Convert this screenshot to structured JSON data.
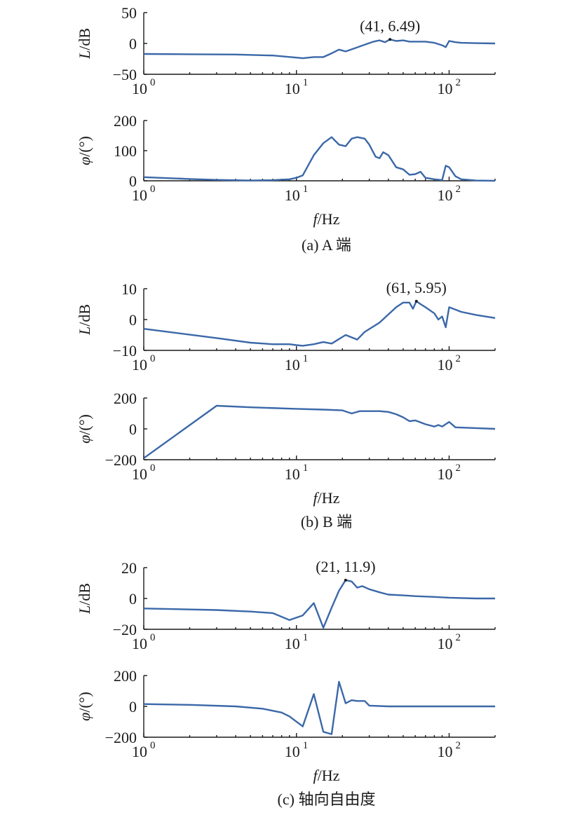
{
  "chart_data": [
    {
      "type": "line",
      "group": "a",
      "caption": "(a) A 端",
      "xlabel": "f/Hz",
      "ylabel": "L/dB",
      "xscale": "log",
      "xlim": [
        1,
        200
      ],
      "ylim": [
        -50,
        50
      ],
      "yticks": [
        -50,
        0,
        50
      ],
      "xticks": [
        1,
        10,
        100
      ],
      "annotation": {
        "x": 41,
        "y": 6.49,
        "text": "(41, 6.49)"
      },
      "series": [
        {
          "x": [
            1,
            2,
            4,
            7,
            10,
            11,
            13,
            15,
            17,
            19,
            21,
            24,
            28,
            32,
            35,
            38,
            41,
            45,
            50,
            55,
            60,
            70,
            80,
            90,
            95,
            100,
            110,
            120,
            150,
            200
          ],
          "y": [
            -17,
            -17.5,
            -18,
            -19.5,
            -23,
            -24,
            -22,
            -22,
            -16,
            -10,
            -13,
            -8,
            -2,
            3,
            5,
            2,
            6.49,
            4,
            5,
            3,
            3,
            3,
            1,
            -3,
            -6,
            4,
            2,
            1,
            0.5,
            0
          ]
        }
      ]
    },
    {
      "type": "line",
      "group": "a",
      "caption": "",
      "xlabel": "f/Hz",
      "ylabel": "φ/(°)",
      "xscale": "log",
      "xlim": [
        1,
        200
      ],
      "ylim": [
        0,
        200
      ],
      "yticks": [
        0,
        100,
        200
      ],
      "xticks": [
        1,
        10,
        100
      ],
      "series": [
        {
          "x": [
            1,
            2,
            3,
            5,
            7,
            9,
            10,
            11,
            13,
            15,
            17,
            19,
            21,
            23,
            25,
            28,
            30,
            33,
            35,
            37,
            40,
            45,
            50,
            55,
            60,
            65,
            70,
            80,
            90,
            95,
            100,
            110,
            120,
            150,
            200
          ],
          "y": [
            12,
            6,
            3,
            1,
            2,
            5,
            10,
            18,
            85,
            125,
            145,
            120,
            115,
            140,
            145,
            140,
            120,
            80,
            75,
            95,
            85,
            45,
            38,
            20,
            22,
            30,
            10,
            5,
            2,
            50,
            45,
            15,
            5,
            1,
            0
          ]
        }
      ]
    },
    {
      "type": "line",
      "group": "b",
      "caption": "(b) B 端",
      "xlabel": "f/Hz",
      "ylabel": "L/dB",
      "xscale": "log",
      "xlim": [
        1,
        200
      ],
      "ylim": [
        -10,
        10
      ],
      "yticks": [
        -10,
        0,
        10
      ],
      "xticks": [
        1,
        10,
        100
      ],
      "annotation": {
        "x": 61,
        "y": 5.95,
        "text": "(61, 5.95)"
      },
      "series": [
        {
          "x": [
            1,
            3,
            5,
            7,
            9,
            10,
            11,
            13,
            15,
            17,
            21,
            25,
            28,
            35,
            45,
            50,
            55,
            58,
            61,
            65,
            70,
            80,
            85,
            90,
            95,
            100,
            120,
            150,
            200
          ],
          "y": [
            -3,
            -6,
            -7.5,
            -8,
            -8,
            -8.3,
            -8.5,
            -8,
            -7.3,
            -7.8,
            -5,
            -6.5,
            -4,
            -1,
            4,
            5.5,
            5.5,
            3.5,
            5.95,
            5,
            4,
            2,
            0,
            1,
            -2.5,
            4,
            2.5,
            1.5,
            0.5
          ]
        }
      ]
    },
    {
      "type": "line",
      "group": "b",
      "caption": "",
      "xlabel": "f/Hz",
      "ylabel": "φ/(°)",
      "xscale": "log",
      "xlim": [
        1,
        200
      ],
      "ylim": [
        -200,
        200
      ],
      "yticks": [
        -200,
        0,
        200
      ],
      "xticks": [
        1,
        10,
        100
      ],
      "series": [
        {
          "x": [
            1,
            3,
            5,
            10,
            15,
            20,
            23,
            26,
            30,
            35,
            40,
            45,
            50,
            55,
            60,
            70,
            80,
            85,
            90,
            100,
            110,
            150,
            200
          ],
          "y": [
            -190,
            150,
            140,
            130,
            125,
            120,
            100,
            115,
            115,
            115,
            110,
            95,
            75,
            50,
            55,
            30,
            15,
            25,
            15,
            45,
            10,
            5,
            0
          ]
        }
      ]
    },
    {
      "type": "line",
      "group": "c",
      "caption": "(c) 轴向自由度",
      "xlabel": "f/Hz",
      "ylabel": "L/dB",
      "xscale": "log",
      "xlim": [
        1,
        200
      ],
      "ylim": [
        -20,
        20
      ],
      "yticks": [
        -20,
        0,
        20
      ],
      "xticks": [
        1,
        10,
        100
      ],
      "annotation": {
        "x": 21,
        "y": 11.9,
        "text": "(21, 11.9)"
      },
      "series": [
        {
          "x": [
            1,
            3,
            5,
            7,
            9,
            11,
            13,
            15,
            17,
            19,
            21,
            23,
            25,
            27,
            30,
            35,
            40,
            50,
            60,
            80,
            100,
            150,
            200
          ],
          "y": [
            -6.5,
            -7.5,
            -8.5,
            -9.5,
            -14,
            -11,
            -3,
            -19,
            -6,
            5,
            11.9,
            11,
            7,
            8,
            6,
            4,
            2.5,
            2,
            1.5,
            1,
            0.5,
            0,
            0
          ]
        }
      ]
    },
    {
      "type": "line",
      "group": "c",
      "caption": "",
      "xlabel": "f/Hz",
      "ylabel": "φ/(°)",
      "xscale": "log",
      "xlim": [
        1,
        200
      ],
      "ylim": [
        -200,
        200
      ],
      "yticks": [
        -200,
        0,
        200
      ],
      "xticks": [
        1,
        10,
        100
      ],
      "series": [
        {
          "x": [
            1,
            2,
            4,
            6,
            8,
            9,
            11,
            13,
            15,
            17,
            19,
            21,
            23,
            25,
            28,
            30,
            40,
            60,
            100,
            150,
            200
          ],
          "y": [
            15,
            10,
            0,
            -15,
            -40,
            -65,
            -130,
            80,
            -165,
            -180,
            160,
            20,
            40,
            35,
            35,
            5,
            0,
            0,
            0,
            0,
            0
          ]
        }
      ]
    }
  ]
}
